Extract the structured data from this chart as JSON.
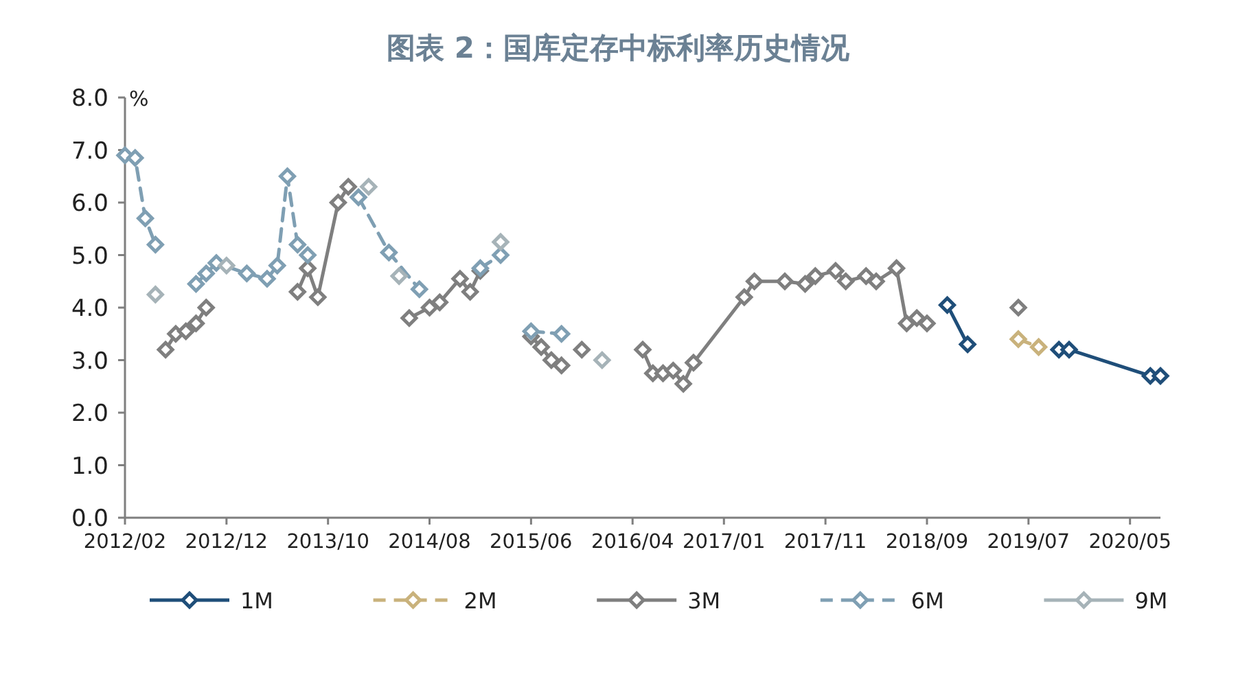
{
  "chart_data": {
    "type": "line",
    "title": "图表 2：国库定存中标利率历史情况",
    "ylabel": "%",
    "xlim": [
      "2012-02",
      "2020-08"
    ],
    "xticks": [
      {
        "value": "2012-02",
        "label": "2012/02"
      },
      {
        "value": "2012-12",
        "label": "2012/12"
      },
      {
        "value": "2013-10",
        "label": "2013/10"
      },
      {
        "value": "2014-08",
        "label": "2014/08"
      },
      {
        "value": "2015-06",
        "label": "2015/06"
      },
      {
        "value": "2016-04",
        "label": "2016/04"
      },
      {
        "value": "2017-01",
        "label": "2017/01"
      },
      {
        "value": "2017-11",
        "label": "2017/11"
      },
      {
        "value": "2018-09",
        "label": "2018/09"
      },
      {
        "value": "2019-07",
        "label": "2019/07"
      },
      {
        "value": "2020-05",
        "label": "2020/05"
      }
    ],
    "ylim": [
      0,
      8
    ],
    "yticks": [
      {
        "value": 0,
        "label": "0.0"
      },
      {
        "value": 1,
        "label": "1.0"
      },
      {
        "value": 2,
        "label": "2.0"
      },
      {
        "value": 3,
        "label": "3.0"
      },
      {
        "value": 4,
        "label": "4.0"
      },
      {
        "value": 5,
        "label": "5.0"
      },
      {
        "value": 6,
        "label": "6.0"
      },
      {
        "value": 7,
        "label": "7.0"
      },
      {
        "value": 8,
        "label": "8.0"
      }
    ],
    "marker": "diamond",
    "legend": "bottom",
    "series": [
      {
        "name": "1M",
        "color": "#1f4e79",
        "line_style": "solid",
        "x": [
          "2018-11",
          "2019-01",
          null,
          "2019-10",
          "2019-11",
          "2020-07",
          "2020-08"
        ],
        "values": [
          4.05,
          3.3,
          null,
          3.2,
          3.2,
          2.7,
          2.7
        ]
      },
      {
        "name": "2M",
        "color": "#c9b27c",
        "line_style": "dashed",
        "x": [
          "2019-06",
          "2019-08"
        ],
        "values": [
          3.4,
          3.25
        ]
      },
      {
        "name": "3M",
        "color": "#7f7f7f",
        "line_style": "solid",
        "x": [
          "2012-06",
          "2012-07",
          "2012-08",
          "2012-09",
          "2012-10",
          null,
          "2013-07",
          "2013-08",
          "2013-09",
          "2013-11",
          "2013-12",
          null,
          "2014-06",
          "2014-08",
          "2014-09",
          "2014-11",
          "2014-12",
          "2015-01",
          null,
          "2015-06",
          "2015-07",
          "2015-08",
          "2015-09",
          null,
          "2015-11",
          null,
          "2016-05",
          "2016-06",
          "2016-07",
          "2016-08",
          "2016-09",
          "2016-10",
          "2017-03",
          "2017-04",
          "2017-07",
          "2017-09",
          "2017-10",
          "2017-12",
          "2018-01",
          "2018-03",
          "2018-04",
          "2018-06",
          "2018-07",
          "2018-08",
          "2018-09",
          null,
          "2019-06"
        ],
        "values": [
          3.2,
          3.5,
          3.55,
          3.7,
          4.0,
          null,
          4.3,
          4.75,
          4.2,
          6.0,
          6.3,
          null,
          3.8,
          4.0,
          4.1,
          4.55,
          4.3,
          4.7,
          null,
          3.45,
          3.25,
          3.0,
          2.9,
          null,
          3.2,
          null,
          3.2,
          2.75,
          2.75,
          2.8,
          2.55,
          2.95,
          4.2,
          4.5,
          4.5,
          4.45,
          4.6,
          4.7,
          4.5,
          4.6,
          4.5,
          4.75,
          3.7,
          3.8,
          3.7,
          null,
          4.0
        ]
      },
      {
        "name": "6M",
        "color": "#7f9fb3",
        "line_style": "dashed",
        "x": [
          "2012-02",
          "2012-03",
          "2012-04",
          "2012-05",
          null,
          "2012-09",
          "2012-10",
          "2012-11",
          "2013-02",
          "2013-04",
          "2013-05",
          "2013-06",
          "2013-07",
          "2013-08",
          null,
          "2014-01",
          "2014-04",
          "2014-07",
          null,
          "2015-01",
          "2015-03",
          null,
          "2015-06",
          "2015-09"
        ],
        "values": [
          6.9,
          6.85,
          5.7,
          5.2,
          null,
          4.45,
          4.65,
          4.85,
          4.65,
          4.55,
          4.8,
          6.5,
          5.2,
          5.0,
          null,
          6.1,
          5.05,
          4.35,
          null,
          4.75,
          5.0,
          null,
          3.55,
          3.5
        ]
      },
      {
        "name": "9M",
        "type": "scatter",
        "color": "#a6b3b8",
        "line_style": "solid",
        "x": [
          "2012-05",
          "2012-12",
          "2014-02",
          "2014-05",
          "2015-03",
          "2016-01"
        ],
        "values": [
          4.25,
          4.8,
          6.3,
          4.6,
          5.25,
          3.0
        ]
      }
    ]
  }
}
